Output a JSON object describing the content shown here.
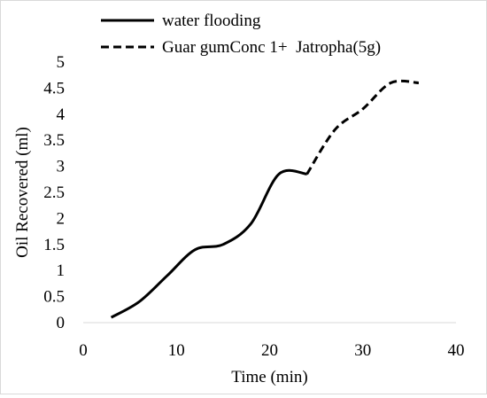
{
  "chart_data": {
    "type": "line",
    "title": "",
    "xlabel": "Time (min)",
    "ylabel": "Oil Recovered (ml)",
    "xlim": [
      0,
      40
    ],
    "ylim": [
      0,
      5
    ],
    "xticks": [
      0,
      10,
      20,
      30,
      40
    ],
    "yticks": [
      0,
      0.5,
      1,
      1.5,
      2,
      2.5,
      3,
      3.5,
      4,
      4.5,
      5
    ],
    "ytick_labels": [
      "0",
      "0.5",
      "1",
      "1.5",
      "2",
      "2.5",
      "3",
      "3.5",
      "4",
      "4.5",
      "5"
    ],
    "grid": false,
    "legend_position": "top",
    "series": [
      {
        "name": "water flooding",
        "style": "solid",
        "color": "#000000",
        "x": [
          3,
          6,
          9,
          12,
          15,
          18,
          21,
          24
        ],
        "y": [
          0.1,
          0.4,
          0.9,
          1.4,
          1.5,
          1.9,
          2.85,
          2.85
        ]
      },
      {
        "name": "Guar gumConc 1+  Jatropha(5g)",
        "style": "dashed",
        "color": "#000000",
        "x": [
          24,
          27,
          30,
          33,
          36
        ],
        "y": [
          2.85,
          3.7,
          4.1,
          4.6,
          4.6
        ]
      }
    ]
  }
}
